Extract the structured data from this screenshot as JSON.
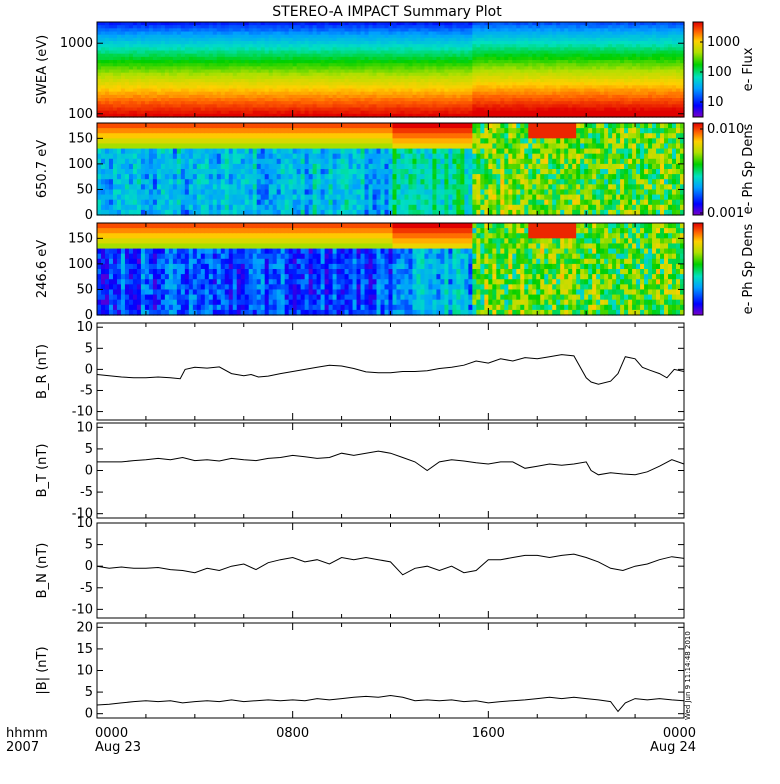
{
  "title": "STEREO-A IMPACT Summary Plot",
  "x_axis": {
    "unit_label": "hhmm",
    "year": "2007",
    "ticks": [
      {
        "label": "0000",
        "sub": "Aug 23",
        "hour": 0
      },
      {
        "label": "0800",
        "sub": "",
        "hour": 8
      },
      {
        "label": "1600",
        "sub": "",
        "hour": 16
      },
      {
        "label": "0000",
        "sub": "Aug 24",
        "hour": 24
      }
    ],
    "range_hours": [
      0,
      24
    ]
  },
  "timestamp": "Wed Jun 9 11:14:48 2010",
  "colors": {
    "colormap": [
      "#7a00c8",
      "#0000ff",
      "#00a0ff",
      "#00e0c0",
      "#00d000",
      "#b0e000",
      "#ffd000",
      "#ff6000",
      "#e00000"
    ],
    "line": "#000000"
  },
  "chart_data": [
    {
      "type": "heatmap",
      "panel": "swea",
      "ylabel": "SWEA (eV)",
      "yscale": "log",
      "ylim": [
        90,
        2000
      ],
      "yticks": [
        "1000",
        "100"
      ],
      "colorbar_label": "e- Flux",
      "colorbar_ticks": [
        "1000",
        "100",
        "10"
      ],
      "colorbar_scale": "log",
      "colorbar_range": [
        3,
        4000
      ]
    },
    {
      "type": "heatmap",
      "panel": "pad_650",
      "ylabel": "650.7 eV",
      "ylim": [
        0,
        180
      ],
      "yticks": [
        "150",
        "100",
        "50",
        "0"
      ],
      "colorbar_label": "e- Ph Sp Dens",
      "colorbar_ticks": [
        "0.010",
        "0.001"
      ],
      "colorbar_scale": "log",
      "colorbar_range": [
        0.001,
        0.01
      ]
    },
    {
      "type": "heatmap",
      "panel": "pad_246",
      "ylabel": "246.6 eV",
      "ylim": [
        0,
        180
      ],
      "yticks": [
        "150",
        "100",
        "50",
        "0"
      ],
      "colorbar_label": "e- Ph Sp Dens",
      "colorbar_ticks": [],
      "colorbar_scale": "log"
    },
    {
      "type": "line",
      "panel": "br",
      "ylabel": "B_R (nT)",
      "ylim": [
        -12,
        11
      ],
      "yticks": [
        "10",
        "5",
        "0",
        "-5",
        "-10"
      ],
      "x": [
        0,
        0.5,
        1,
        1.5,
        2,
        2.5,
        3,
        3.4,
        3.6,
        4,
        4.5,
        5,
        5.5,
        6,
        6.3,
        6.6,
        7,
        7.5,
        8,
        8.5,
        9,
        9.5,
        10,
        10.5,
        11,
        11.5,
        12,
        12.5,
        13,
        13.5,
        14,
        14.5,
        15,
        15.5,
        16,
        16.5,
        17,
        17.5,
        18,
        18.5,
        19,
        19.5,
        20,
        20.2,
        20.5,
        21,
        21.3,
        21.6,
        22,
        22.3,
        22.6,
        23,
        23.3,
        23.6,
        24
      ],
      "y": [
        -1.2,
        -1.5,
        -1.8,
        -2,
        -2,
        -1.8,
        -2,
        -2.2,
        0,
        0.5,
        0.3,
        0.6,
        -1,
        -1.5,
        -1.2,
        -1.8,
        -1.6,
        -1,
        -0.5,
        0,
        0.5,
        1,
        0.8,
        0.2,
        -0.6,
        -0.8,
        -0.8,
        -0.5,
        -0.5,
        -0.3,
        0.2,
        0.5,
        1,
        2,
        1.5,
        2.5,
        2,
        2.8,
        2.5,
        3,
        3.5,
        3.2,
        -2,
        -3,
        -3.5,
        -2.8,
        -1,
        3,
        2.5,
        0.5,
        -0.2,
        -1,
        -2,
        0,
        -0.5
      ]
    },
    {
      "type": "line",
      "panel": "bt",
      "ylabel": "B_T (nT)",
      "ylim": [
        -11,
        11
      ],
      "yticks": [
        "10",
        "5",
        "0",
        "-5",
        "-10"
      ],
      "x": [
        0,
        0.5,
        1,
        1.5,
        2,
        2.5,
        3,
        3.5,
        4,
        4.5,
        5,
        5.5,
        6,
        6.5,
        7,
        7.5,
        8,
        8.5,
        9,
        9.5,
        10,
        10.5,
        11,
        11.5,
        12,
        12.5,
        13,
        13.5,
        14,
        14.5,
        15,
        15.5,
        16,
        16.5,
        17,
        17.5,
        18,
        18.5,
        19,
        19.5,
        20,
        20.2,
        20.5,
        21,
        21.5,
        22,
        22.5,
        23,
        23.5,
        24
      ],
      "y": [
        2,
        2,
        2,
        2.3,
        2.5,
        2.8,
        2.5,
        3,
        2.3,
        2.5,
        2.2,
        2.8,
        2.5,
        2.3,
        2.8,
        3,
        3.5,
        3.2,
        2.8,
        3,
        4,
        3.5,
        4,
        4.5,
        4,
        3,
        2,
        0,
        2,
        2.5,
        2.2,
        1.8,
        1.5,
        2,
        2,
        0.5,
        1,
        1.5,
        1.2,
        1.5,
        2,
        0,
        -1,
        -0.5,
        -0.8,
        -1,
        -0.3,
        1,
        2.5,
        1.5
      ]
    },
    {
      "type": "line",
      "panel": "bn",
      "ylabel": "B_N (nT)",
      "ylim": [
        -12,
        10
      ],
      "yticks": [
        "10",
        "5",
        "0",
        "-5",
        "-10"
      ],
      "x": [
        0,
        0.5,
        1,
        1.5,
        2,
        2.5,
        3,
        3.5,
        4,
        4.5,
        5,
        5.5,
        6,
        6.5,
        7,
        7.5,
        8,
        8.5,
        9,
        9.5,
        10,
        10.5,
        11,
        11.5,
        12,
        12.5,
        13,
        13.5,
        14,
        14.5,
        15,
        15.5,
        16,
        16.5,
        17,
        17.5,
        18,
        18.5,
        19,
        19.5,
        20,
        20.5,
        21,
        21.5,
        22,
        22.5,
        23,
        23.5,
        24
      ],
      "y": [
        0,
        -0.5,
        -0.2,
        -0.5,
        -0.5,
        -0.3,
        -0.8,
        -1,
        -1.5,
        -0.5,
        -1,
        0,
        0.5,
        -0.8,
        0.8,
        1.5,
        2,
        1,
        1.5,
        0.5,
        2,
        1.5,
        2,
        1.5,
        1,
        -2,
        -0.5,
        0,
        -1,
        0,
        -1.5,
        -1,
        1.5,
        1.5,
        2,
        2.5,
        2.5,
        2,
        2.5,
        2.8,
        2,
        1,
        -0.5,
        -1,
        0,
        0.5,
        1.5,
        2.2,
        1.8
      ]
    },
    {
      "type": "line",
      "panel": "bmag",
      "ylabel": "|B| (nT)",
      "ylim": [
        -1,
        21
      ],
      "yticks": [
        "20",
        "15",
        "10",
        "5",
        "0"
      ],
      "x": [
        0,
        0.5,
        1,
        1.5,
        2,
        2.5,
        3,
        3.5,
        4,
        4.5,
        5,
        5.5,
        6,
        6.5,
        7,
        7.5,
        8,
        8.5,
        9,
        9.5,
        10,
        10.5,
        11,
        11.5,
        12,
        12.5,
        13,
        13.5,
        14,
        14.5,
        15,
        15.5,
        16,
        16.5,
        17,
        17.5,
        18,
        18.5,
        19,
        19.5,
        20,
        20.5,
        21,
        21.3,
        21.6,
        22,
        22.5,
        23,
        23.5,
        24
      ],
      "y": [
        2,
        2.2,
        2.5,
        2.8,
        3,
        2.8,
        3,
        2.5,
        2.8,
        3,
        2.8,
        3.2,
        2.8,
        3,
        3.2,
        3,
        3.2,
        3,
        3.5,
        3.2,
        3.5,
        3.8,
        4,
        3.8,
        4.2,
        3.8,
        3,
        3.2,
        3,
        3.2,
        2.8,
        3,
        2.5,
        2.8,
        3,
        3.2,
        3.5,
        3.8,
        3.5,
        3.8,
        3.5,
        3.2,
        2.8,
        0.5,
        2.5,
        3.5,
        3.2,
        3.5,
        3.2,
        3
      ]
    }
  ]
}
